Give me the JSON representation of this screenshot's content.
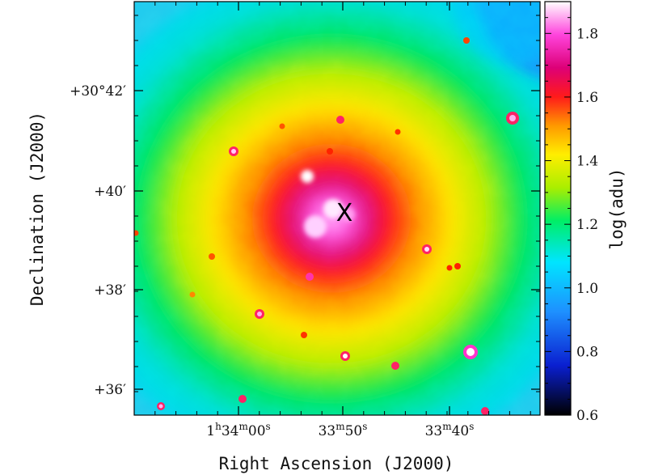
{
  "chart_data": {
    "type": "heatmap",
    "xlabel": "Right Ascension (J2000)",
    "ylabel": "Declination (J2000)",
    "colorbar_label": "log(adu)",
    "colorbar_range": [
      0.6,
      1.9
    ],
    "colorbar_ticks": [
      "0.6",
      "0.8",
      "1.0",
      "1.2",
      "1.4",
      "1.6",
      "1.8"
    ],
    "x_ticks": [
      {
        "h": "1",
        "m": "34",
        "s": "00",
        "show_hours": true
      },
      {
        "h": "",
        "m": "33",
        "s": "50",
        "show_hours": false
      },
      {
        "h": "",
        "m": "33",
        "s": "40",
        "show_hours": false
      }
    ],
    "y_ticks": [
      "+30°42′",
      "+40′",
      "+38′",
      "+36′"
    ],
    "marker": {
      "label": "X"
    },
    "colormap": [
      "#000000",
      "#0a1fd0",
      "#1e90ff",
      "#00e5ff",
      "#00ee66",
      "#aaee00",
      "#ffee00",
      "#ff9900",
      "#ff1a1a",
      "#dd0077",
      "#ff44dd",
      "#ffffff"
    ]
  }
}
